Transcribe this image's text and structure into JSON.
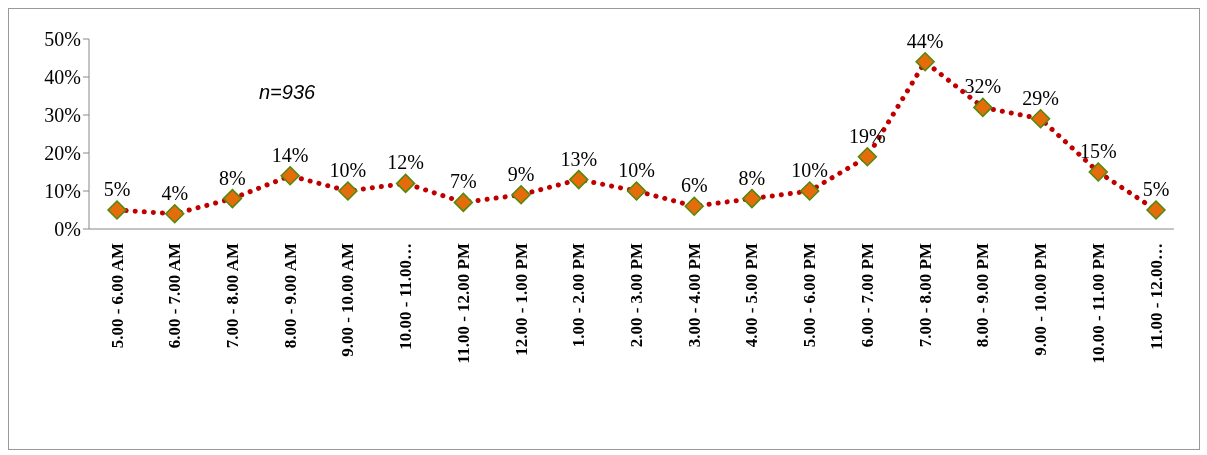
{
  "chart_data": {
    "type": "line",
    "categories": [
      "5.00 - 6.00 AM",
      "6.00 - 7.00 AM",
      "7.00 - 8.00 AM",
      "8.00 - 9.00 AM",
      "9.00 - 10.00 AM",
      "10.00 - 11.00…",
      "11.00 - 12.00 PM",
      "12.00 - 1.00 PM",
      "1.00 - 2.00 PM",
      "2.00 - 3.00 PM",
      "3.00 - 4.00 PM",
      "4.00 - 5.00 PM",
      "5.00 - 6.00 PM",
      "6.00 - 7.00 PM",
      "7.00 - 8.00 PM",
      "8.00 - 9.00 PM",
      "9.00 - 10.00 PM",
      "10.00 - 11.00 PM",
      "11.00 - 12.00…"
    ],
    "series": [
      {
        "color": "#c00000",
        "colors": [
          "#e46c0a",
          "#e46c0a",
          "#e46c0a",
          "#e46c0a",
          "#e46c0a",
          "#e46c0a",
          "#e46c0a",
          "#e46c0a",
          "#e46c0a",
          "#e46c0a",
          "#e46c0a",
          "#e46c0a",
          "#e46c0a",
          "#e46c0a",
          "#e46c0a",
          "#e46c0a",
          "#e46c0a",
          "#e46c0a",
          "#e46c0a"
        ],
        "values": [
          5,
          4,
          8,
          14,
          10,
          12,
          7,
          9,
          13,
          10,
          6,
          8,
          10,
          19,
          44,
          32,
          29,
          15,
          5
        ]
      }
    ],
    "ylim": [
      0,
      50
    ],
    "yticks": [
      {
        "value": 0,
        "label": "0%"
      },
      {
        "value": 10,
        "label": "10%"
      },
      {
        "value": 20,
        "label": "20%"
      },
      {
        "value": 30,
        "label": "30%"
      },
      {
        "value": 40,
        "label": "40%"
      },
      {
        "value": 50,
        "label": "50%"
      }
    ],
    "value_labels": [
      "5%",
      "4%",
      "8%",
      "14%",
      "10%",
      "12%",
      "7%",
      "9%",
      "13%",
      "10%",
      "6%",
      "8%",
      "10%",
      "19%",
      "44%",
      "32%",
      "29%",
      "15%",
      "5%"
    ],
    "annotations": [
      "n=936"
    ],
    "marker": "diamond",
    "line_style": "dotted",
    "grid": false,
    "legend": false
  }
}
